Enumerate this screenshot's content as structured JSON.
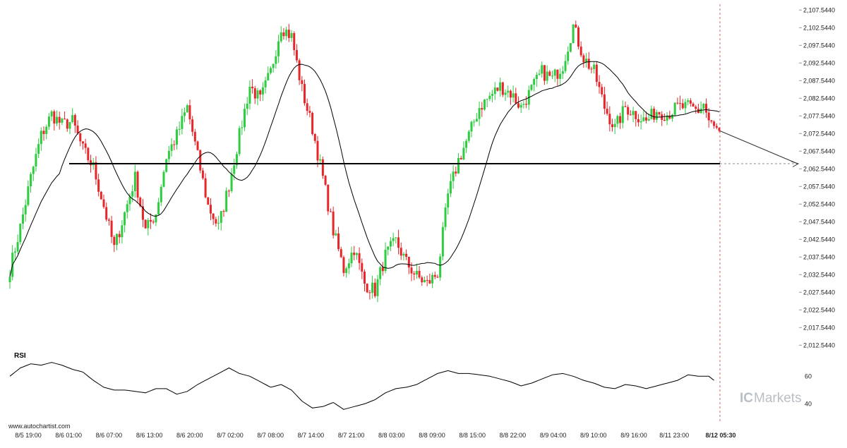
{
  "watermark_left": "www.autochartist.com",
  "brand": {
    "ic": "IC",
    "markets": "Markets",
    "color": "#9aa3ab"
  },
  "colors": {
    "up": "#2ecc40",
    "down": "#e8262a",
    "line": "#000000",
    "grid": "#d8d8d8"
  },
  "chart_data": [
    {
      "type": "candlestick",
      "title": "",
      "y_ticks": [
        "2,107.5440",
        "2,102.5440",
        "2,097.5440",
        "2,092.5440",
        "2,087.5440",
        "2,082.5440",
        "2,077.5440",
        "2,072.5440",
        "2,067.5440",
        "2,062.5440",
        "2,057.5440",
        "2,052.5440",
        "2,047.5440",
        "2,042.5440",
        "2,037.5440",
        "2,032.5440",
        "2,027.5440",
        "2,022.5440",
        "2,017.5440",
        "2,012.5440"
      ],
      "ylim": [
        2010.0,
        2108.8
      ],
      "x_ticks": [
        "8/5 19:00",
        "8/6 01:00",
        "8/6 07:00",
        "8/6 13:00",
        "8/6 20:00",
        "8/7 02:00",
        "8/7 08:00",
        "8/7 14:00",
        "8/7 21:00",
        "8/8 03:00",
        "8/8 09:00",
        "8/8 15:00",
        "8/8 22:00",
        "8/9 04:00",
        "8/9 10:00",
        "8/9 16:00",
        "8/11 23:00",
        "8/12 05:30"
      ],
      "support_level": 2064.0,
      "forecast_target": 2064.0,
      "last_close": 2073.3,
      "close_path": [
        [
          0,
          2034
        ],
        [
          4,
          2046
        ],
        [
          8,
          2060
        ],
        [
          12,
          2072
        ],
        [
          16,
          2078
        ],
        [
          20,
          2075
        ],
        [
          24,
          2076
        ],
        [
          28,
          2068
        ],
        [
          32,
          2063
        ],
        [
          36,
          2052
        ],
        [
          40,
          2040
        ],
        [
          44,
          2050
        ],
        [
          48,
          2060
        ],
        [
          52,
          2045
        ],
        [
          56,
          2050
        ],
        [
          60,
          2066
        ],
        [
          64,
          2072
        ],
        [
          68,
          2080
        ],
        [
          72,
          2066
        ],
        [
          76,
          2052
        ],
        [
          80,
          2046
        ],
        [
          84,
          2058
        ],
        [
          88,
          2072
        ],
        [
          92,
          2086
        ],
        [
          96,
          2082
        ],
        [
          100,
          2090
        ],
        [
          104,
          2103
        ],
        [
          108,
          2100
        ],
        [
          112,
          2085
        ],
        [
          116,
          2074
        ],
        [
          120,
          2060
        ],
        [
          124,
          2045
        ],
        [
          128,
          2034
        ],
        [
          132,
          2040
        ],
        [
          136,
          2030
        ],
        [
          140,
          2028
        ],
        [
          144,
          2038
        ],
        [
          148,
          2042
        ],
        [
          152,
          2036
        ],
        [
          156,
          2032
        ],
        [
          160,
          2030
        ],
        [
          164,
          2033
        ],
        [
          168,
          2055
        ],
        [
          172,
          2065
        ],
        [
          176,
          2072
        ],
        [
          180,
          2080
        ],
        [
          184,
          2083
        ],
        [
          188,
          2086
        ],
        [
          192,
          2084
        ],
        [
          196,
          2080
        ],
        [
          200,
          2085
        ],
        [
          204,
          2090
        ],
        [
          208,
          2088
        ],
        [
          212,
          2092
        ],
        [
          216,
          2103
        ],
        [
          220,
          2094
        ],
        [
          224,
          2090
        ],
        [
          228,
          2080
        ],
        [
          232,
          2074
        ],
        [
          236,
          2080
        ],
        [
          240,
          2078
        ],
        [
          244,
          2076
        ],
        [
          248,
          2079
        ],
        [
          252,
          2078
        ],
        [
          256,
          2080
        ],
        [
          260,
          2080
        ],
        [
          264,
          2079
        ],
        [
          266,
          2081
        ],
        [
          268,
          2076
        ],
        [
          270,
          2074
        ],
        [
          272,
          2073.3
        ]
      ]
    },
    {
      "type": "line",
      "title": "RSI",
      "ylim": [
        30,
        77
      ],
      "y_ticks": [
        "60",
        "40"
      ],
      "rsi_path": [
        [
          0,
          60
        ],
        [
          4,
          66
        ],
        [
          8,
          69
        ],
        [
          12,
          68
        ],
        [
          16,
          70
        ],
        [
          20,
          68
        ],
        [
          24,
          65
        ],
        [
          28,
          63
        ],
        [
          32,
          57
        ],
        [
          36,
          52
        ],
        [
          40,
          50
        ],
        [
          44,
          50
        ],
        [
          48,
          49
        ],
        [
          52,
          48
        ],
        [
          56,
          51
        ],
        [
          60,
          51
        ],
        [
          64,
          47
        ],
        [
          68,
          49
        ],
        [
          72,
          54
        ],
        [
          76,
          58
        ],
        [
          80,
          62
        ],
        [
          84,
          66
        ],
        [
          88,
          62
        ],
        [
          92,
          60
        ],
        [
          96,
          56
        ],
        [
          100,
          52
        ],
        [
          104,
          54
        ],
        [
          108,
          50
        ],
        [
          112,
          42
        ],
        [
          116,
          37
        ],
        [
          120,
          38
        ],
        [
          124,
          41
        ],
        [
          128,
          36
        ],
        [
          132,
          38
        ],
        [
          136,
          40
        ],
        [
          140,
          43
        ],
        [
          144,
          48
        ],
        [
          148,
          51
        ],
        [
          152,
          52
        ],
        [
          156,
          54
        ],
        [
          160,
          58
        ],
        [
          164,
          62
        ],
        [
          168,
          64
        ],
        [
          172,
          62
        ],
        [
          176,
          62
        ],
        [
          180,
          61
        ],
        [
          184,
          60
        ],
        [
          188,
          58
        ],
        [
          192,
          56
        ],
        [
          196,
          53
        ],
        [
          200,
          55
        ],
        [
          204,
          58
        ],
        [
          208,
          61
        ],
        [
          212,
          62
        ],
        [
          216,
          60
        ],
        [
          220,
          57
        ],
        [
          224,
          55
        ],
        [
          228,
          52
        ],
        [
          232,
          51
        ],
        [
          236,
          54
        ],
        [
          240,
          53
        ],
        [
          244,
          51
        ],
        [
          248,
          53
        ],
        [
          252,
          55
        ],
        [
          256,
          57
        ],
        [
          260,
          61
        ],
        [
          264,
          60
        ],
        [
          268,
          60
        ],
        [
          270,
          57
        ]
      ]
    }
  ]
}
